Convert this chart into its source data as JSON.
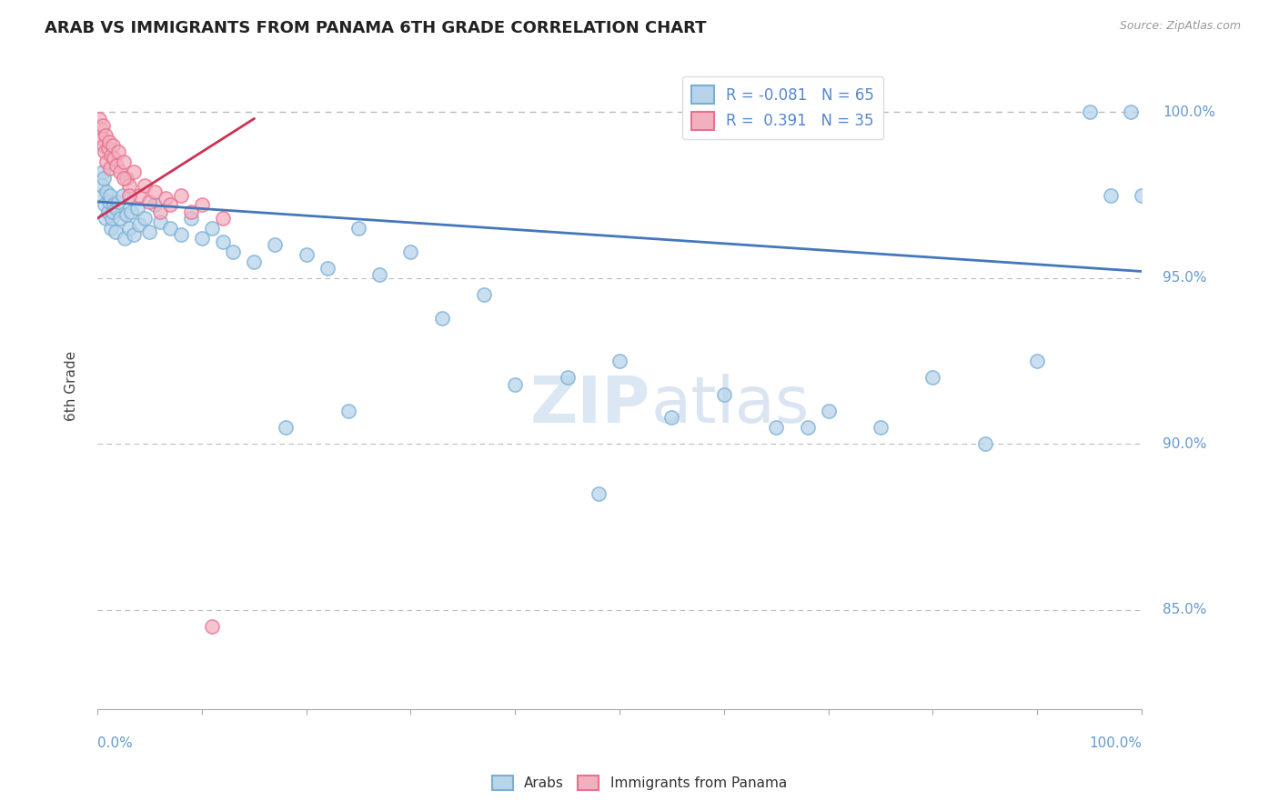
{
  "title": "ARAB VS IMMIGRANTS FROM PANAMA 6TH GRADE CORRELATION CHART",
  "source": "Source: ZipAtlas.com",
  "ylabel": "6th Grade",
  "xlim": [
    0.0,
    100.0
  ],
  "ylim": [
    82.0,
    101.5
  ],
  "yticks": [
    85.0,
    90.0,
    95.0,
    100.0
  ],
  "blue_R": -0.081,
  "blue_N": 65,
  "pink_R": 0.391,
  "pink_N": 35,
  "blue_color": "#b8d4ea",
  "pink_color": "#f2b0bf",
  "blue_edge_color": "#7aafd4",
  "pink_edge_color": "#e87090",
  "blue_line_color": "#4477bb",
  "pink_line_color": "#cc3355",
  "dashed_line_color": "#bbbbbb",
  "dashed_y": 100.0,
  "blue_line_x0": 0.0,
  "blue_line_y0": 97.3,
  "blue_line_x1": 100.0,
  "blue_line_y1": 95.2,
  "pink_line_x0": 0.0,
  "pink_line_y0": 96.8,
  "pink_line_x1": 15.0,
  "pink_line_y1": 99.8,
  "blue_scatter_x": [
    0.3,
    0.4,
    0.5,
    0.6,
    0.7,
    0.8,
    0.9,
    1.0,
    1.1,
    1.2,
    1.3,
    1.4,
    1.5,
    1.6,
    1.7,
    1.8,
    2.0,
    2.2,
    2.4,
    2.6,
    2.8,
    3.0,
    3.2,
    3.5,
    3.8,
    4.0,
    4.5,
    5.0,
    5.5,
    6.0,
    7.0,
    8.0,
    9.0,
    10.0,
    11.0,
    12.0,
    13.0,
    15.0,
    17.0,
    20.0,
    22.0,
    25.0,
    27.0,
    30.0,
    33.0,
    37.0,
    40.0,
    45.0,
    50.0,
    55.0,
    60.0,
    65.0,
    70.0,
    75.0,
    80.0,
    85.0,
    90.0,
    95.0,
    97.0,
    99.0,
    100.0,
    18.0,
    24.0,
    48.0,
    68.0
  ],
  "blue_scatter_y": [
    97.5,
    97.8,
    98.2,
    98.0,
    97.2,
    96.8,
    97.6,
    97.0,
    97.3,
    97.5,
    96.5,
    96.8,
    97.0,
    97.2,
    96.4,
    97.1,
    97.3,
    96.8,
    97.5,
    96.2,
    96.9,
    96.5,
    97.0,
    96.3,
    97.1,
    96.6,
    96.8,
    96.4,
    97.2,
    96.7,
    96.5,
    96.3,
    96.8,
    96.2,
    96.5,
    96.1,
    95.8,
    95.5,
    96.0,
    95.7,
    95.3,
    96.5,
    95.1,
    95.8,
    93.8,
    94.5,
    91.8,
    92.0,
    92.5,
    90.8,
    91.5,
    90.5,
    91.0,
    90.5,
    92.0,
    90.0,
    92.5,
    100.0,
    97.5,
    100.0,
    97.5,
    90.5,
    91.0,
    88.5,
    90.5
  ],
  "pink_scatter_x": [
    0.2,
    0.3,
    0.4,
    0.5,
    0.6,
    0.7,
    0.8,
    0.9,
    1.0,
    1.1,
    1.2,
    1.3,
    1.5,
    1.6,
    1.8,
    2.0,
    2.2,
    2.5,
    2.8,
    3.0,
    3.5,
    4.0,
    4.5,
    5.0,
    5.5,
    6.0,
    6.5,
    7.0,
    8.0,
    9.0,
    10.0,
    11.0,
    12.0,
    3.0,
    2.5
  ],
  "pink_scatter_y": [
    99.8,
    99.5,
    99.2,
    99.6,
    99.0,
    98.8,
    99.3,
    98.5,
    98.9,
    99.1,
    98.3,
    98.7,
    99.0,
    98.6,
    98.4,
    98.8,
    98.2,
    98.5,
    98.0,
    97.8,
    98.2,
    97.5,
    97.8,
    97.3,
    97.6,
    97.0,
    97.4,
    97.2,
    97.5,
    97.0,
    97.2,
    84.5,
    96.8,
    97.5,
    98.0
  ],
  "legend_blue_label": "Arabs",
  "legend_pink_label": "Immigrants from Panama"
}
